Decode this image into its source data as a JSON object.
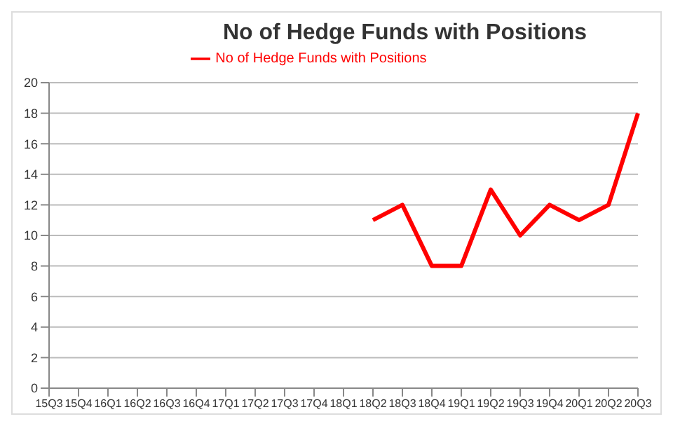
{
  "chart_data": {
    "type": "line",
    "title": "No of Hedge Funds with Positions",
    "categories": [
      "15Q3",
      "15Q4",
      "16Q1",
      "16Q2",
      "16Q3",
      "16Q4",
      "17Q1",
      "17Q2",
      "17Q3",
      "17Q4",
      "18Q1",
      "18Q2",
      "18Q3",
      "18Q4",
      "19Q1",
      "19Q2",
      "19Q3",
      "19Q4",
      "20Q1",
      "20Q2",
      "20Q3"
    ],
    "series": [
      {
        "name": "No of Hedge Funds with Positions",
        "color": "#ff0000",
        "values": [
          null,
          null,
          null,
          null,
          null,
          null,
          null,
          null,
          null,
          null,
          null,
          11,
          12,
          8,
          8,
          13,
          10,
          12,
          11,
          12,
          18
        ]
      }
    ],
    "ylim": [
      0,
      20
    ],
    "yticks": [
      0,
      2,
      4,
      6,
      8,
      10,
      12,
      14,
      16,
      18,
      20
    ],
    "grid": "y",
    "legend": "top",
    "marker": "none",
    "line_style": "solid"
  }
}
